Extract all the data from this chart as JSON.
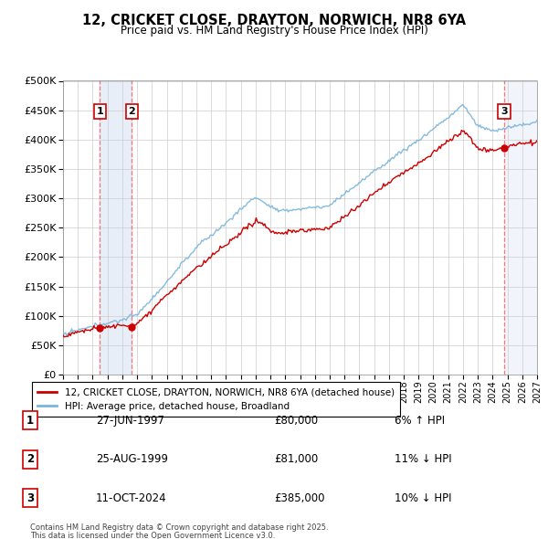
{
  "title1": "12, CRICKET CLOSE, DRAYTON, NORWICH, NR8 6YA",
  "title2": "Price paid vs. HM Land Registry's House Price Index (HPI)",
  "ylim": [
    0,
    500000
  ],
  "yticks": [
    0,
    50000,
    100000,
    150000,
    200000,
    250000,
    300000,
    350000,
    400000,
    450000,
    500000
  ],
  "xlim_start": 1995.0,
  "xlim_end": 2027.0,
  "hpi_color": "#7ab4d8",
  "price_color": "#cc0000",
  "sale_color": "#cc0000",
  "vline_color": "#ff5555",
  "legend_label_price": "12, CRICKET CLOSE, DRAYTON, NORWICH, NR8 6YA (detached house)",
  "legend_label_hpi": "HPI: Average price, detached house, Broadland",
  "sales": [
    {
      "num": 1,
      "date": "27-JUN-1997",
      "year": 1997.49,
      "price": 80000,
      "pct": "6%",
      "dir": "↑"
    },
    {
      "num": 2,
      "date": "25-AUG-1999",
      "year": 1999.65,
      "price": 81000,
      "pct": "11%",
      "dir": "↓"
    },
    {
      "num": 3,
      "date": "11-OCT-2024",
      "year": 2024.78,
      "price": 385000,
      "pct": "10%",
      "dir": "↓"
    }
  ],
  "footnote1": "Contains HM Land Registry data © Crown copyright and database right 2025.",
  "footnote2": "This data is licensed under the Open Government Licence v3.0."
}
